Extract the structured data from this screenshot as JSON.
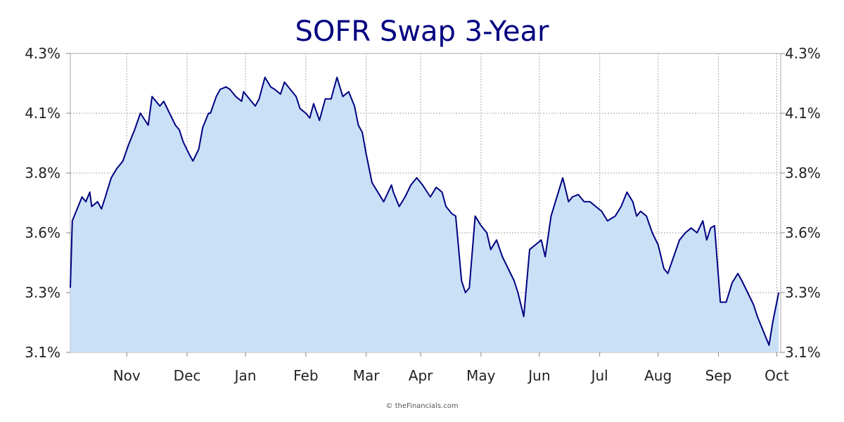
{
  "chart_data": {
    "type": "area",
    "title": "SOFR Swap 3-Year",
    "xlabel": "",
    "ylabel": "",
    "ylim": [
      3.05,
      4.3
    ],
    "y_ticks": [
      "4.3%",
      "4.1%",
      "3.8%",
      "3.6%",
      "3.3%",
      "3.1%"
    ],
    "x_ticks": [
      "Nov",
      "Dec",
      "Jan",
      "Feb",
      "Mar",
      "Apr",
      "May",
      "Jun",
      "Jul",
      "Aug",
      "Sep",
      "Oct"
    ],
    "grid": true,
    "colors": {
      "line": "#000080",
      "fill": "#c9e0f7",
      "grid": "#aaaaaa",
      "title": "#000080"
    },
    "series": [
      {
        "x": [
          0,
          1,
          6,
          8,
          10,
          11,
          14,
          16,
          18,
          21,
          24,
          27,
          30,
          33,
          36,
          40,
          42,
          46,
          48,
          51,
          54,
          56,
          58,
          61,
          63,
          66,
          68,
          71,
          72,
          75,
          77,
          80,
          82,
          85,
          88,
          89,
          91,
          95,
          97,
          100,
          103,
          105,
          108,
          110,
          113,
          116,
          118,
          121,
          123,
          125,
          128,
          131,
          134,
          137,
          140,
          143,
          146,
          148,
          150,
          152,
          155,
          158,
          161,
          165,
          166,
          169,
          172,
          175,
          178,
          181,
          185,
          188,
          191,
          193,
          196,
          198,
          201,
          203,
          205,
          208,
          211,
          214,
          216,
          219,
          222,
          225,
          228,
          230,
          233,
          236,
          239,
          242,
          244,
          247,
          250,
          253,
          256,
          258,
          261,
          264,
          267,
          270,
          273,
          276,
          280,
          283,
          286,
          289,
          291,
          293,
          296,
          299,
          302,
          305,
          307,
          310,
          313,
          316,
          319,
          322,
          325,
          327,
          329,
          331,
          334,
          337,
          340,
          343,
          345,
          348,
          351,
          353,
          356,
          359,
          361,
          364
        ],
        "values": [
          3.32,
          3.6,
          3.7,
          3.68,
          3.72,
          3.66,
          3.68,
          3.65,
          3.7,
          3.78,
          3.82,
          3.85,
          3.92,
          3.98,
          4.05,
          4.0,
          4.12,
          4.08,
          4.1,
          4.05,
          4.0,
          3.98,
          3.93,
          3.88,
          3.85,
          3.9,
          3.99,
          4.05,
          4.05,
          4.12,
          4.15,
          4.16,
          4.15,
          4.12,
          4.1,
          4.14,
          4.12,
          4.08,
          4.11,
          4.2,
          4.16,
          4.15,
          4.13,
          4.18,
          4.15,
          4.12,
          4.07,
          4.05,
          4.03,
          4.09,
          4.02,
          4.11,
          4.11,
          4.2,
          4.12,
          4.14,
          4.08,
          4.0,
          3.97,
          3.88,
          3.76,
          3.72,
          3.68,
          3.75,
          3.72,
          3.66,
          3.7,
          3.75,
          3.78,
          3.75,
          3.7,
          3.74,
          3.72,
          3.66,
          3.63,
          3.62,
          3.35,
          3.3,
          3.32,
          3.62,
          3.58,
          3.55,
          3.48,
          3.52,
          3.45,
          3.4,
          3.35,
          3.3,
          3.2,
          3.48,
          3.5,
          3.52,
          3.45,
          3.62,
          3.7,
          3.78,
          3.68,
          3.7,
          3.71,
          3.68,
          3.68,
          3.66,
          3.64,
          3.6,
          3.62,
          3.66,
          3.72,
          3.68,
          3.62,
          3.64,
          3.62,
          3.55,
          3.5,
          3.4,
          3.38,
          3.45,
          3.52,
          3.55,
          3.57,
          3.55,
          3.6,
          3.52,
          3.57,
          3.58,
          3.26,
          3.26,
          3.34,
          3.38,
          3.35,
          3.3,
          3.25,
          3.2,
          3.14,
          3.08,
          3.18,
          3.3
        ]
      }
    ]
  },
  "credit": "© theFinancials.com"
}
